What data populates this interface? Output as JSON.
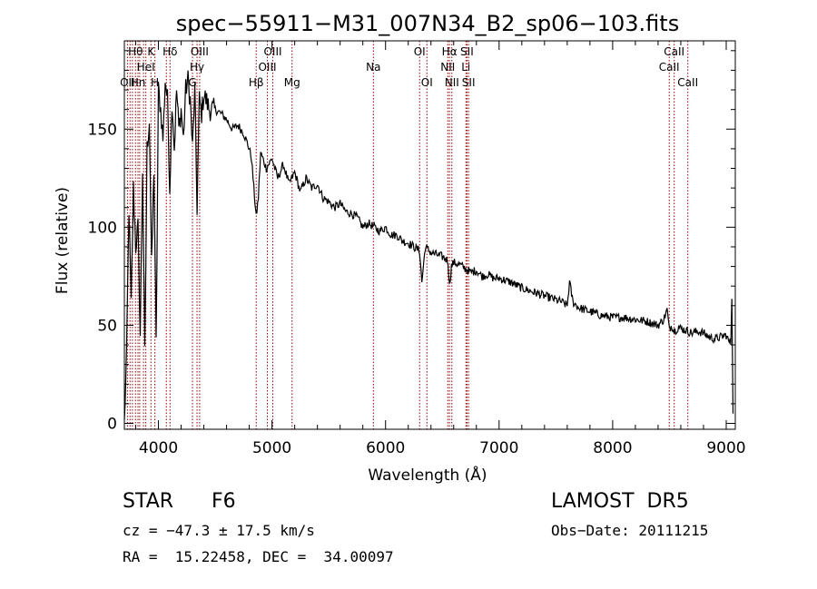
{
  "chart_data": {
    "type": "line",
    "title": "spec−55911−M31_007N34_B2_sp06−103.fits",
    "xlabel": "Wavelength (Å)",
    "ylabel": "Flux (relative)",
    "xlim": [
      3700,
      9080
    ],
    "ylim": [
      -3,
      195
    ],
    "xticks": [
      4000,
      5000,
      6000,
      7000,
      8000,
      9000
    ],
    "yticks": [
      0,
      50,
      100,
      150
    ],
    "grid": false,
    "series": [
      {
        "x": [
          3700,
          3720,
          3740,
          3760,
          3780,
          3800,
          3820,
          3840,
          3860,
          3880,
          3900,
          3920,
          3940,
          3960,
          3980,
          4000,
          4020,
          4040,
          4060,
          4080,
          4100,
          4120,
          4140,
          4160,
          4180,
          4200,
          4220,
          4240,
          4260,
          4280,
          4300,
          4320,
          4340,
          4360,
          4380,
          4400,
          4450,
          4500,
          4550,
          4600,
          4650,
          4700,
          4750,
          4800,
          4820,
          4840,
          4861,
          4880,
          4900,
          4950,
          5000,
          5050,
          5100,
          5150,
          5200,
          5250,
          5300,
          5350,
          5400,
          5450,
          5500,
          5550,
          5600,
          5650,
          5700,
          5750,
          5800,
          5850,
          5900,
          5950,
          6000,
          6050,
          6100,
          6150,
          6200,
          6250,
          6300,
          6320,
          6350,
          6400,
          6450,
          6500,
          6550,
          6563,
          6580,
          6600,
          6650,
          6700,
          6750,
          6800,
          6850,
          6900,
          6950,
          7000,
          7100,
          7200,
          7300,
          7400,
          7500,
          7550,
          7600,
          7620,
          7650,
          7700,
          7800,
          7900,
          8000,
          8100,
          8200,
          8300,
          8400,
          8450,
          8480,
          8498,
          8520,
          8542,
          8580,
          8620,
          8662,
          8700,
          8750,
          8800,
          8850,
          8900,
          8950,
          9000,
          9020,
          9040,
          9050,
          9060
        ],
        "y": [
          0,
          35,
          110,
          60,
          120,
          90,
          100,
          45,
          130,
          35,
          140,
          155,
          80,
          130,
          40,
          170,
          160,
          145,
          175,
          165,
          120,
          165,
          140,
          170,
          150,
          160,
          145,
          170,
          175,
          165,
          140,
          170,
          110,
          165,
          158,
          168,
          160,
          160,
          158,
          155,
          150,
          152,
          148,
          140,
          135,
          120,
          105,
          115,
          138,
          130,
          135,
          125,
          132,
          122,
          128,
          118,
          125,
          120,
          122,
          115,
          113,
          110,
          112,
          108,
          107,
          105,
          100,
          102,
          100,
          98,
          100,
          96,
          96,
          93,
          92,
          90,
          88,
          72,
          90,
          87,
          86,
          85,
          83,
          70,
          80,
          82,
          81,
          79,
          77,
          78,
          75,
          76,
          74,
          74,
          72,
          69,
          67,
          65,
          63,
          62,
          60,
          72,
          62,
          59,
          57,
          55,
          54,
          54,
          53,
          52,
          50,
          53,
          58,
          48,
          50,
          47,
          49,
          48,
          47,
          46,
          47,
          46,
          44,
          43,
          44,
          45,
          42,
          41,
          65,
          5
        ]
      }
    ],
    "lines": [
      {
        "wave": 3727,
        "label": "OII",
        "row": 2
      },
      {
        "wave": 3750,
        "label": "",
        "row": 0
      },
      {
        "wave": 3771,
        "label": "",
        "row": 0
      },
      {
        "wave": 3798,
        "label": "Hθ",
        "row": 0
      },
      {
        "wave": 3820,
        "label": "Hn",
        "row": 2
      },
      {
        "wave": 3835,
        "label": "",
        "row": 0
      },
      {
        "wave": 3869,
        "label": "",
        "row": 0
      },
      {
        "wave": 3889,
        "label": "HeI",
        "row": 1
      },
      {
        "wave": 3934,
        "label": "K",
        "row": 0
      },
      {
        "wave": 3969,
        "label": "H",
        "row": 2
      },
      {
        "wave": 4070,
        "label": "",
        "row": 0
      },
      {
        "wave": 4102,
        "label": "Hδ",
        "row": 0
      },
      {
        "wave": 4300,
        "label": "G",
        "row": 2
      },
      {
        "wave": 4340,
        "label": "Hγ",
        "row": 1
      },
      {
        "wave": 4363,
        "label": "OIII",
        "row": 0
      },
      {
        "wave": 4861,
        "label": "Hβ",
        "row": 2
      },
      {
        "wave": 4959,
        "label": "OIII",
        "row": 1
      },
      {
        "wave": 5007,
        "label": "OIII",
        "row": 0
      },
      {
        "wave": 5177,
        "label": "Mg",
        "row": 2
      },
      {
        "wave": 5893,
        "label": "Na",
        "row": 1
      },
      {
        "wave": 6300,
        "label": "OI",
        "row": 0
      },
      {
        "wave": 6364,
        "label": "OI",
        "row": 2
      },
      {
        "wave": 6548,
        "label": "NII",
        "row": 1
      },
      {
        "wave": 6563,
        "label": "Hα",
        "row": 0
      },
      {
        "wave": 6584,
        "label": "NII",
        "row": 2
      },
      {
        "wave": 6708,
        "label": "Li",
        "row": 1
      },
      {
        "wave": 6717,
        "label": "SII",
        "row": 0
      },
      {
        "wave": 6731,
        "label": "SII",
        "row": 2
      },
      {
        "wave": 8498,
        "label": "CaII",
        "row": 1
      },
      {
        "wave": 8542,
        "label": "CaII",
        "row": 0
      },
      {
        "wave": 8662,
        "label": "CaII",
        "row": 2
      }
    ],
    "line_color": "#990000"
  },
  "info": {
    "class": "STAR",
    "subclass": "F6",
    "survey": "LAMOST  DR5",
    "cz": "cz = −47.3 ± 17.5 km/s",
    "obsdate": "Obs−Date: 20111215",
    "coords": "RA =  15.22458, DEC =  34.00097"
  }
}
